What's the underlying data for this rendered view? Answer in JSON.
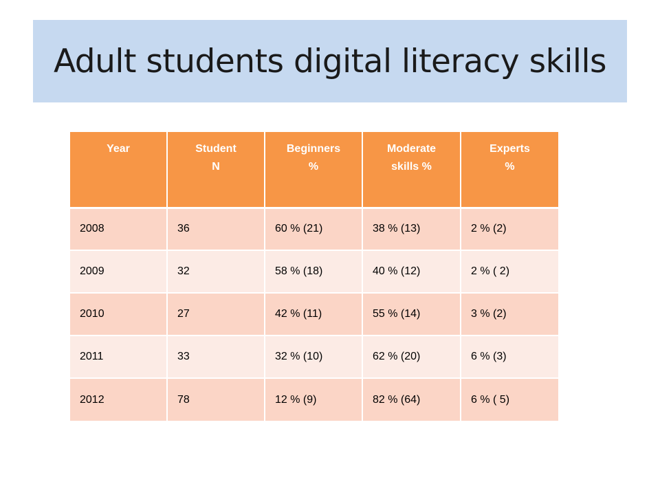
{
  "title": "Adult students digital literacy skills",
  "table": {
    "headers": [
      [
        "Year"
      ],
      [
        "Student",
        "N"
      ],
      [
        "Beginners",
        "%"
      ],
      [
        "Moderate",
        "skills %"
      ],
      [
        "Experts",
        "%"
      ]
    ],
    "rows": [
      [
        "2008",
        "36",
        "60 %  (21)",
        "38 % (13)",
        "2 % (2)"
      ],
      [
        "2009",
        "32",
        "58  % (18)",
        "40 % (12)",
        "2 % ( 2)"
      ],
      [
        "2010",
        "27",
        "42  % (11)",
        "55  % (14)",
        "3 %  (2)"
      ],
      [
        "2011",
        "33",
        "32  % (10)",
        "62  % (20)",
        "6 %  (3)"
      ],
      [
        "2012",
        "78",
        "12 %  (9)",
        "82 % (64)",
        "6 % ( 5)"
      ]
    ]
  },
  "colors": {
    "header_bg": "#f79646",
    "row_dark": "#fbd5c6",
    "row_light": "#fcebe5",
    "title_bg": "#c6d9f0"
  }
}
